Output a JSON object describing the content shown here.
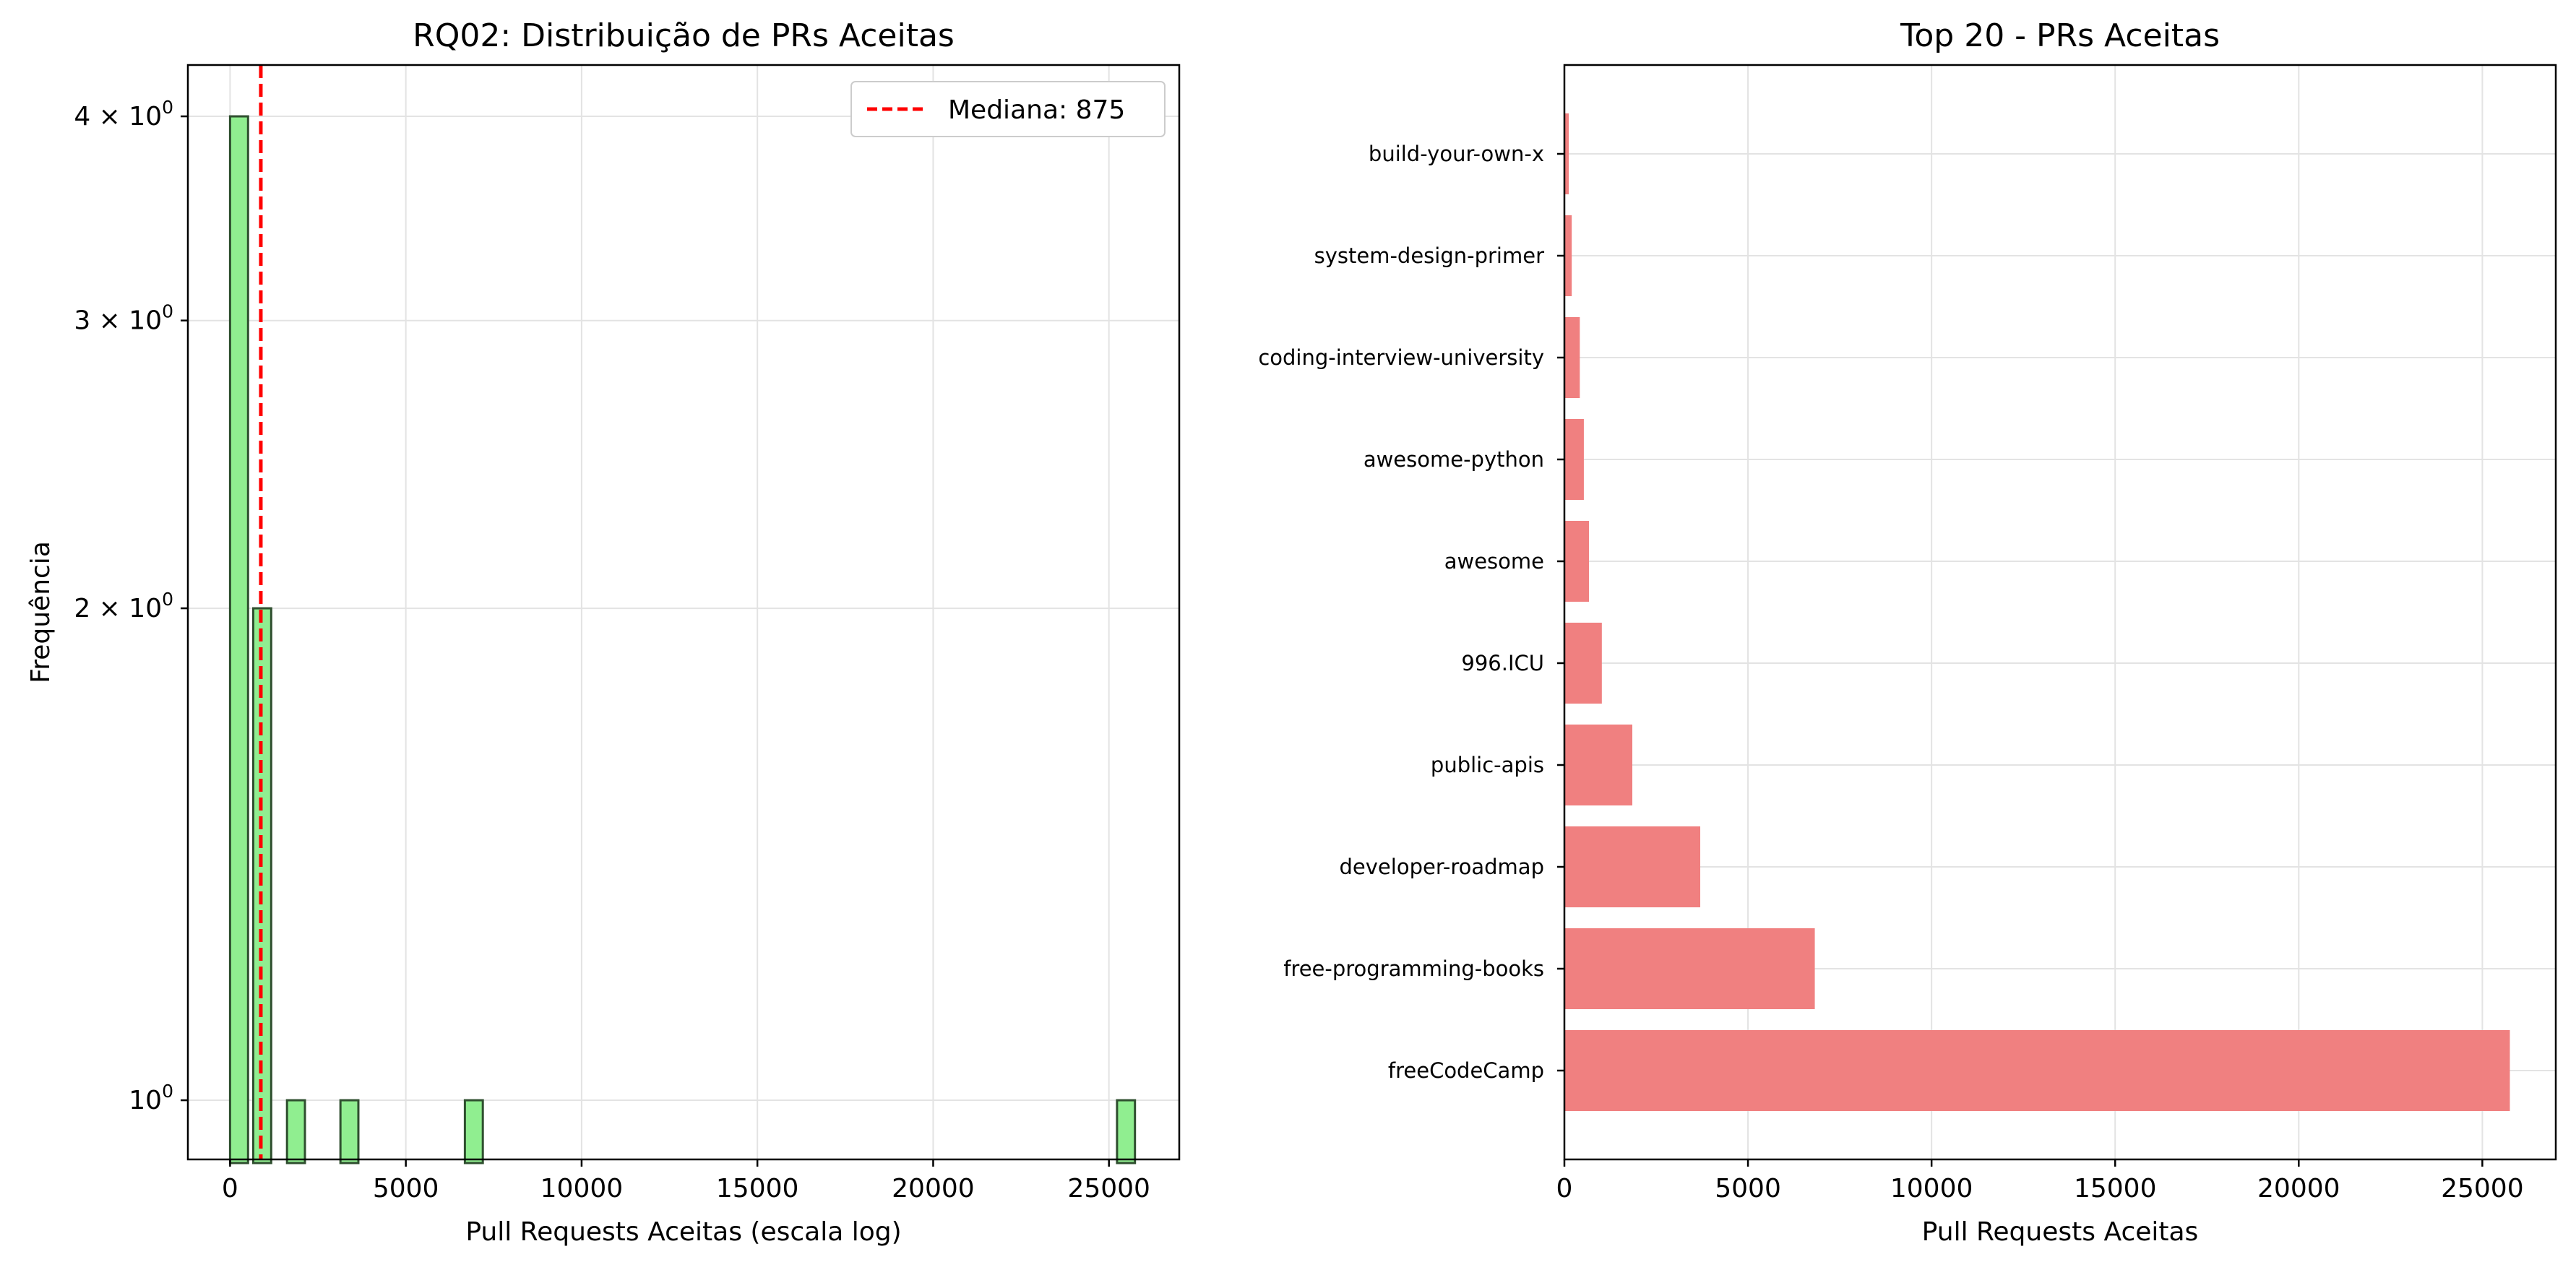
{
  "chart_data": [
    {
      "type": "histogram",
      "title": "RQ02: Distribuição de PRs Aceitas",
      "xlabel": "Pull Requests Aceitas (escala log)",
      "ylabel": "Frequência",
      "xlim": [
        -1200,
        27000
      ],
      "xticks": [
        0,
        5000,
        10000,
        15000,
        20000,
        25000
      ],
      "xtick_labels": [
        "0",
        "5000",
        "10000",
        "15000",
        "20000",
        "25000"
      ],
      "yscale": "log",
      "ylim": [
        0.92,
        4.3
      ],
      "yticks": [
        1,
        2,
        3,
        4
      ],
      "ytick_labels": [
        {
          "base": "10",
          "exp": "0",
          "prefix": ""
        },
        {
          "base": "10",
          "exp": "0",
          "prefix": "2 × "
        },
        {
          "base": "10",
          "exp": "0",
          "prefix": "3 × "
        },
        {
          "base": "10",
          "exp": "0",
          "prefix": "4 × "
        }
      ],
      "bins": [
        {
          "x0": 0,
          "x1": 512,
          "count": 4
        },
        {
          "x0": 660,
          "x1": 1170,
          "count": 2
        },
        {
          "x0": 1620,
          "x1": 2130,
          "count": 1
        },
        {
          "x0": 3140,
          "x1": 3650,
          "count": 1
        },
        {
          "x0": 6680,
          "x1": 7190,
          "count": 1
        },
        {
          "x0": 25230,
          "x1": 25740,
          "count": 1
        }
      ],
      "median": 875,
      "legend": {
        "label": "Mediana: 875",
        "position": "upper right"
      },
      "grid": true
    },
    {
      "type": "bar-horizontal",
      "title": "Top 20 - PRs Aceitas",
      "xlabel": "Pull Requests Aceitas",
      "xlim": [
        0,
        27000
      ],
      "xticks": [
        0,
        5000,
        10000,
        15000,
        20000,
        25000
      ],
      "xtick_labels": [
        "0",
        "5000",
        "10000",
        "15000",
        "20000",
        "25000"
      ],
      "categories": [
        "freeCodeCamp",
        "free-programming-books",
        "developer-roadmap",
        "public-apis",
        "996.ICU",
        "awesome",
        "awesome-python",
        "coding-interview-university",
        "system-design-primer",
        "build-your-own-x"
      ],
      "values": [
        25750,
        6820,
        3700,
        1850,
        1020,
        670,
        530,
        420,
        200,
        120
      ],
      "grid": true
    }
  ],
  "colors": {
    "hist_fill": "#90ee90",
    "hist_edge": "#2f4f2f",
    "bar_fill": "#f08080",
    "median_line": "#ff0000",
    "grid": "#e3e3e3",
    "axis": "#000000"
  }
}
